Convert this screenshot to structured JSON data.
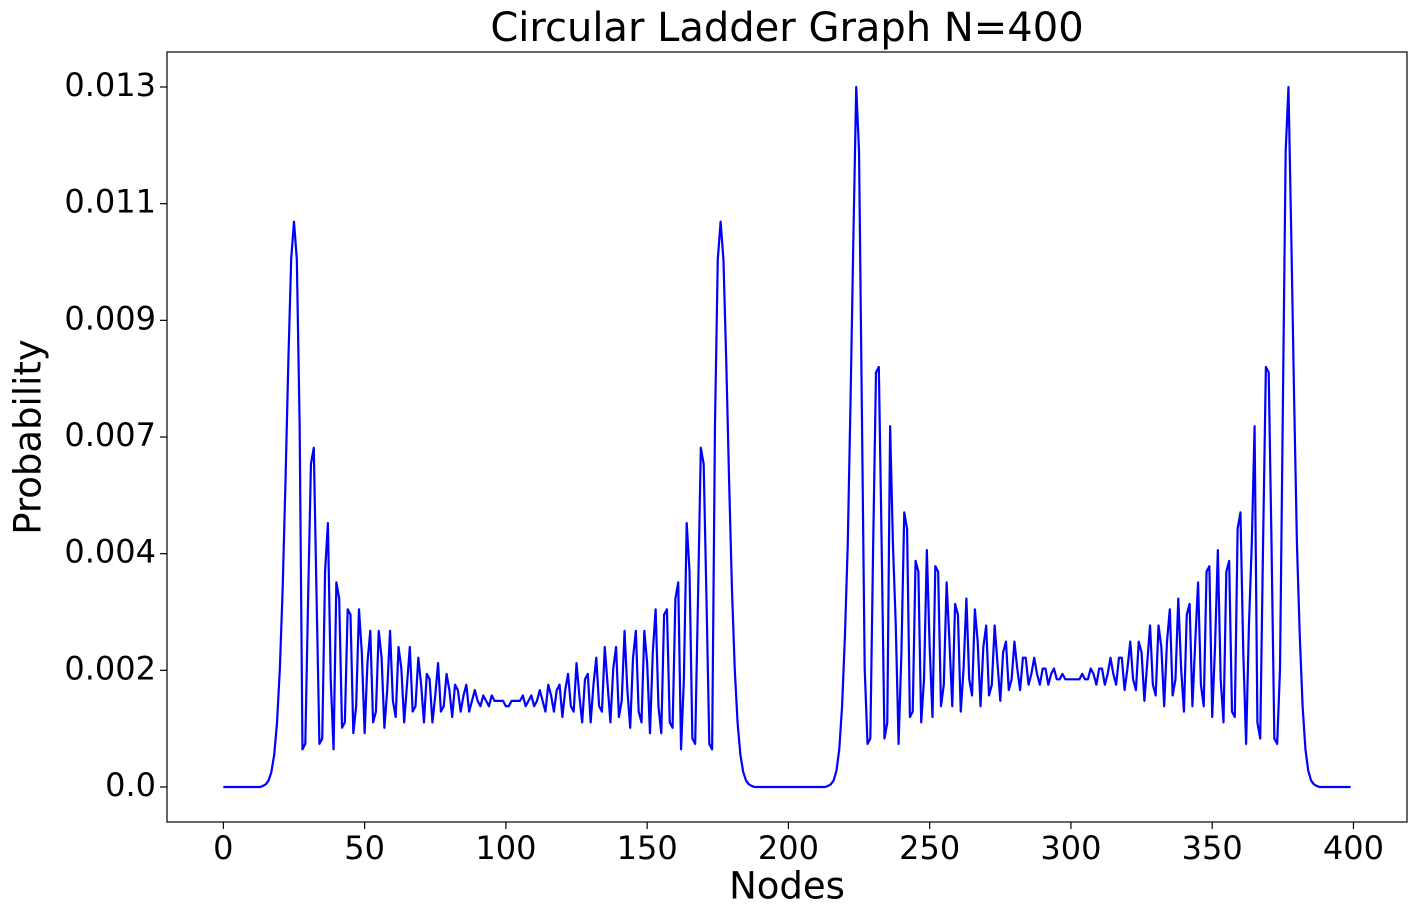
{
  "chart_data": {
    "type": "line",
    "title": "Circular Ladder Graph N=400",
    "xlabel": "Nodes",
    "ylabel": "Probability",
    "color": "#0000ff",
    "xlim": [
      -19.95,
      418.95
    ],
    "xticks": [
      0,
      50,
      100,
      150,
      200,
      250,
      300,
      350,
      400
    ],
    "ylim": [
      -0.00065,
      0.01365
    ],
    "yticks": [
      {
        "value": 0,
        "label": "0.0"
      },
      {
        "value": 0.0021667,
        "label": "0.002"
      },
      {
        "value": 0.0043333,
        "label": "0.004"
      },
      {
        "value": 0.0065,
        "label": "0.007"
      },
      {
        "value": 0.0086667,
        "label": "0.009"
      },
      {
        "value": 0.0108333,
        "label": "0.011"
      },
      {
        "value": 0.013,
        "label": "0.013"
      }
    ],
    "x": [
      0,
      1,
      2,
      3,
      4,
      5,
      6,
      7,
      8,
      9,
      10,
      11,
      12,
      13,
      14,
      15,
      16,
      17,
      18,
      19,
      20,
      21,
      22,
      23,
      24,
      25,
      26,
      27,
      28,
      29,
      30,
      31,
      32,
      33,
      34,
      35,
      36,
      37,
      38,
      39,
      40,
      41,
      42,
      43,
      44,
      45,
      46,
      47,
      48,
      49,
      50,
      51,
      52,
      53,
      54,
      55,
      56,
      57,
      58,
      59,
      60,
      61,
      62,
      63,
      64,
      65,
      66,
      67,
      68,
      69,
      70,
      71,
      72,
      73,
      74,
      75,
      76,
      77,
      78,
      79,
      80,
      81,
      82,
      83,
      84,
      85,
      86,
      87,
      88,
      89,
      90,
      91,
      92,
      93,
      94,
      95,
      96,
      97,
      98,
      99,
      100,
      101,
      102,
      103,
      104,
      105,
      106,
      107,
      108,
      109,
      110,
      111,
      112,
      113,
      114,
      115,
      116,
      117,
      118,
      119,
      120,
      121,
      122,
      123,
      124,
      125,
      126,
      127,
      128,
      129,
      130,
      131,
      132,
      133,
      134,
      135,
      136,
      137,
      138,
      139,
      140,
      141,
      142,
      143,
      144,
      145,
      146,
      147,
      148,
      149,
      150,
      151,
      152,
      153,
      154,
      155,
      156,
      157,
      158,
      159,
      160,
      161,
      162,
      163,
      164,
      165,
      166,
      167,
      168,
      169,
      170,
      171,
      172,
      173,
      174,
      175,
      176,
      177,
      178,
      179,
      180,
      181,
      182,
      183,
      184,
      185,
      186,
      187,
      188,
      189,
      190,
      191,
      192,
      193,
      194,
      195,
      196,
      197,
      198,
      199,
      200,
      201,
      202,
      203,
      204,
      205,
      206,
      207,
      208,
      209,
      210,
      211,
      212,
      213,
      214,
      215,
      216,
      217,
      218,
      219,
      220,
      221,
      222,
      223,
      224,
      225,
      226,
      227,
      228,
      229,
      230,
      231,
      232,
      233,
      234,
      235,
      236,
      237,
      238,
      239,
      240,
      241,
      242,
      243,
      244,
      245,
      246,
      247,
      248,
      249,
      250,
      251,
      252,
      253,
      254,
      255,
      256,
      257,
      258,
      259,
      260,
      261,
      262,
      263,
      264,
      265,
      266,
      267,
      268,
      269,
      270,
      271,
      272,
      273,
      274,
      275,
      276,
      277,
      278,
      279,
      280,
      281,
      282,
      283,
      284,
      285,
      286,
      287,
      288,
      289,
      290,
      291,
      292,
      293,
      294,
      295,
      296,
      297,
      298,
      299,
      300,
      301,
      302,
      303,
      304,
      305,
      306,
      307,
      308,
      309,
      310,
      311,
      312,
      313,
      314,
      315,
      316,
      317,
      318,
      319,
      320,
      321,
      322,
      323,
      324,
      325,
      326,
      327,
      328,
      329,
      330,
      331,
      332,
      333,
      334,
      335,
      336,
      337,
      338,
      339,
      340,
      341,
      342,
      343,
      344,
      345,
      346,
      347,
      348,
      349,
      350,
      351,
      352,
      353,
      354,
      355,
      356,
      357,
      358,
      359,
      360,
      361,
      362,
      363,
      364,
      365,
      366,
      367,
      368,
      369,
      370,
      371,
      372,
      373,
      374,
      375,
      376,
      377,
      378,
      379,
      380,
      381,
      382,
      383,
      384,
      385,
      386,
      387,
      388,
      389,
      390,
      391,
      392,
      393,
      394,
      395,
      396,
      397,
      398,
      399
    ],
    "values": [
      0,
      0,
      0,
      0,
      0,
      0,
      0,
      0,
      0,
      0,
      0,
      0,
      0,
      0,
      2e-05,
      5e-05,
      0.00012,
      0.00028,
      0.0006,
      0.0012,
      0.0022,
      0.0037,
      0.0057,
      0.0079,
      0.0098,
      0.0105,
      0.0098,
      0.0067,
      0.0007,
      0.0008,
      0.0035,
      0.006,
      0.0063,
      0.0035,
      0.0008,
      0.0009,
      0.004,
      0.0049,
      0.002,
      0.0007,
      0.0038,
      0.0035,
      0.0011,
      0.0012,
      0.0033,
      0.0032,
      0.001,
      0.0015,
      0.0033,
      0.0025,
      0.001,
      0.0023,
      0.0029,
      0.0012,
      0.0014,
      0.0029,
      0.0024,
      0.0011,
      0.0018,
      0.0029,
      0.0016,
      0.0013,
      0.0026,
      0.0022,
      0.0012,
      0.0019,
      0.0026,
      0.0014,
      0.0015,
      0.0024,
      0.0019,
      0.0012,
      0.0021,
      0.002,
      0.0012,
      0.0017,
      0.0023,
      0.0014,
      0.0015,
      0.0021,
      0.0018,
      0.0013,
      0.0019,
      0.0018,
      0.0014,
      0.0017,
      0.0019,
      0.0014,
      0.0016,
      0.0018,
      0.0016,
      0.0015,
      0.0017,
      0.0016,
      0.0015,
      0.0017,
      0.0016,
      0.0016,
      0.0016,
      0.0016,
      0.0015,
      0.0015,
      0.0016,
      0.0016,
      0.0016,
      0.0016,
      0.0017,
      0.0015,
      0.0016,
      0.0017,
      0.0015,
      0.0016,
      0.0018,
      0.0016,
      0.0014,
      0.0019,
      0.0017,
      0.0014,
      0.0018,
      0.0019,
      0.0013,
      0.0018,
      0.0021,
      0.0015,
      0.0014,
      0.0023,
      0.0017,
      0.0012,
      0.002,
      0.0021,
      0.0012,
      0.0019,
      0.0024,
      0.0015,
      0.0014,
      0.0026,
      0.0019,
      0.0012,
      0.0022,
      0.0026,
      0.0013,
      0.0016,
      0.0029,
      0.0018,
      0.0011,
      0.0024,
      0.0029,
      0.0014,
      0.0012,
      0.0029,
      0.0023,
      0.001,
      0.0025,
      0.0033,
      0.0015,
      0.001,
      0.0032,
      0.0033,
      0.0012,
      0.0011,
      0.0035,
      0.0038,
      0.0007,
      0.002,
      0.0049,
      0.004,
      0.0009,
      0.0008,
      0.0035,
      0.0063,
      0.006,
      0.0035,
      0.0008,
      0.0007,
      0.0067,
      0.0098,
      0.0105,
      0.0098,
      0.0079,
      0.0057,
      0.0037,
      0.0022,
      0.0012,
      0.0006,
      0.00028,
      0.00012,
      5e-05,
      2e-05,
      0,
      0,
      0,
      0,
      0,
      0,
      0,
      0,
      0,
      0,
      0,
      0,
      0,
      0,
      0,
      0,
      0,
      0,
      0,
      0,
      0,
      0,
      0,
      0,
      0,
      0,
      2e-05,
      5e-05,
      0.00012,
      0.0003,
      0.0007,
      0.0015,
      0.0028,
      0.0045,
      0.0072,
      0.0102,
      0.013,
      0.0118,
      0.007,
      0.0022,
      0.0008,
      0.0009,
      0.0045,
      0.0077,
      0.0078,
      0.0045,
      0.0009,
      0.0012,
      0.0067,
      0.0045,
      0.003,
      0.0008,
      0.0025,
      0.0051,
      0.0048,
      0.0013,
      0.0014,
      0.0042,
      0.004,
      0.0012,
      0.002,
      0.0044,
      0.0026,
      0.0013,
      0.0041,
      0.004,
      0.0015,
      0.0019,
      0.0038,
      0.0027,
      0.0015,
      0.0034,
      0.0032,
      0.0014,
      0.0022,
      0.0035,
      0.002,
      0.0017,
      0.0033,
      0.0027,
      0.0015,
      0.0026,
      0.003,
      0.0017,
      0.0019,
      0.003,
      0.0023,
      0.0016,
      0.0025,
      0.0027,
      0.0018,
      0.002,
      0.0027,
      0.0022,
      0.0018,
      0.0024,
      0.0024,
      0.0019,
      0.0021,
      0.0024,
      0.0021,
      0.0019,
      0.0022,
      0.0022,
      0.0019,
      0.0021,
      0.0022,
      0.002,
      0.002,
      0.0021,
      0.002,
      0.002,
      0.002,
      0.002,
      0.002,
      0.002,
      0.0021,
      0.002,
      0.002,
      0.0022,
      0.0021,
      0.0019,
      0.0022,
      0.0022,
      0.0019,
      0.0021,
      0.0024,
      0.0021,
      0.0019,
      0.0024,
      0.0024,
      0.0018,
      0.0022,
      0.0027,
      0.002,
      0.0018,
      0.0027,
      0.0025,
      0.0016,
      0.0023,
      0.003,
      0.0019,
      0.0017,
      0.003,
      0.0026,
      0.0015,
      0.0027,
      0.0033,
      0.0017,
      0.002,
      0.0035,
      0.0022,
      0.0014,
      0.0032,
      0.0034,
      0.0015,
      0.0027,
      0.0038,
      0.0019,
      0.0015,
      0.004,
      0.0041,
      0.0013,
      0.0026,
      0.0044,
      0.002,
      0.0012,
      0.004,
      0.0042,
      0.0014,
      0.0013,
      0.0048,
      0.0051,
      0.0025,
      0.0008,
      0.003,
      0.0045,
      0.0067,
      0.0012,
      0.0009,
      0.0045,
      0.0078,
      0.0077,
      0.0045,
      0.0009,
      0.0008,
      0.0022,
      0.007,
      0.0118,
      0.013,
      0.0102,
      0.0072,
      0.0045,
      0.0028,
      0.0015,
      0.0007,
      0.0003,
      0.00012,
      5e-05,
      2e-05,
      0,
      0,
      0,
      0,
      0,
      0,
      0,
      0,
      0,
      0,
      0,
      0
    ]
  }
}
